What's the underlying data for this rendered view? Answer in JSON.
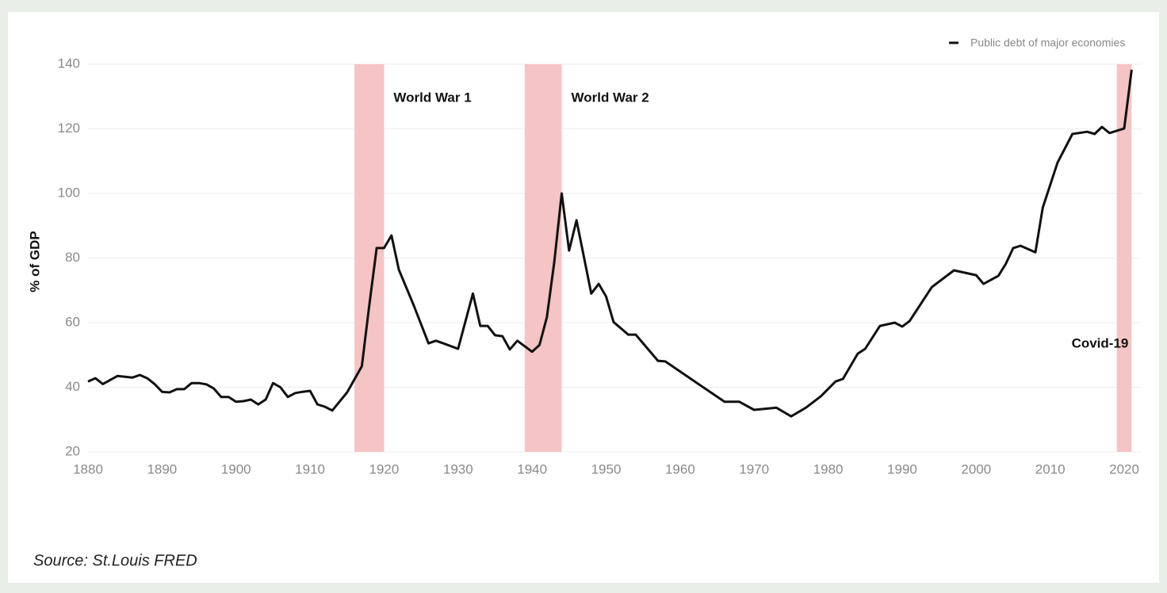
{
  "chart_data": {
    "type": "line",
    "y_label": "% of GDP",
    "source": "Source: St.Louis FRED",
    "legend_position": "top-right",
    "grid": true,
    "xlim": [
      1880,
      2022
    ],
    "xticks": [
      1880,
      1890,
      1900,
      1910,
      1920,
      1930,
      1940,
      1950,
      1960,
      1970,
      1980,
      1990,
      2000,
      2010,
      2020
    ],
    "ylim": [
      20,
      140
    ],
    "yticks": [
      20,
      40,
      60,
      80,
      100,
      120,
      140
    ],
    "bands": [
      {
        "label": "World War 1",
        "start": 1916,
        "end": 1920,
        "color": "#f5c4c4"
      },
      {
        "label": "World War 2",
        "start": 1939,
        "end": 1944,
        "color": "#f5c4c4"
      },
      {
        "label": "Covid-19",
        "start": 2019,
        "end": 2021,
        "color": "#f5c4c4"
      }
    ],
    "x": [
      1880,
      1881,
      1882,
      1884,
      1886,
      1887,
      1888,
      1889,
      1890,
      1891,
      1892,
      1893,
      1894,
      1895,
      1896,
      1897,
      1898,
      1899,
      1900,
      1901,
      1902,
      1903,
      1904,
      1905,
      1906,
      1907,
      1908,
      1909,
      1910,
      1911,
      1912,
      1913,
      1915,
      1917,
      1918,
      1919,
      1920,
      1921,
      1922,
      1924,
      1926,
      1927,
      1928,
      1930,
      1932,
      1933,
      1934,
      1935,
      1936,
      1937,
      1938,
      1940,
      1941,
      1942,
      1943,
      1944,
      1945,
      1946,
      1948,
      1949,
      1950,
      1951,
      1953,
      1954,
      1957,
      1958,
      1966,
      1968,
      1970,
      1973,
      1975,
      1977,
      1979,
      1981,
      1982,
      1984,
      1985,
      1987,
      1989,
      1990,
      1991,
      1994,
      1997,
      2000,
      2001,
      2003,
      2004,
      2005,
      2006,
      2008,
      2009,
      2011,
      2013,
      2015,
      2016,
      2017,
      2018,
      2020,
      2021
    ],
    "series": [
      {
        "name": "Public debt of major economies",
        "color": "#111111",
        "values": [
          41.8,
          42.8,
          41,
          43.5,
          43,
          43.8,
          42.8,
          41,
          38.6,
          38.4,
          39.4,
          39.4,
          41.3,
          41.3,
          40.9,
          39.6,
          37,
          37,
          35.5,
          35.7,
          36.2,
          34.7,
          36.2,
          41.3,
          40,
          37,
          38.2,
          38.6,
          38.9,
          34.7,
          34,
          32.8,
          38.4,
          46.5,
          65.4,
          83.1,
          83.1,
          87,
          76.4,
          65.4,
          53.6,
          54.4,
          53.6,
          51.9,
          69,
          59,
          59,
          56.1,
          55.8,
          51.7,
          54.4,
          51,
          53.1,
          61.7,
          78.9,
          100,
          82.3,
          91.7,
          69,
          72,
          68.1,
          60.2,
          56.3,
          56.3,
          48.2,
          48,
          35.5,
          35.5,
          33,
          33.7,
          31,
          33.7,
          37.2,
          41.8,
          42.6,
          50.4,
          51.9,
          59,
          60,
          58.8,
          60.5,
          71,
          76.2,
          74.7,
          72,
          74.5,
          78.2,
          83.1,
          83.8,
          81.8,
          95.6,
          109.6,
          118.4,
          119.1,
          118.4,
          120.6,
          118.7,
          120.1,
          138.3
        ]
      }
    ]
  }
}
